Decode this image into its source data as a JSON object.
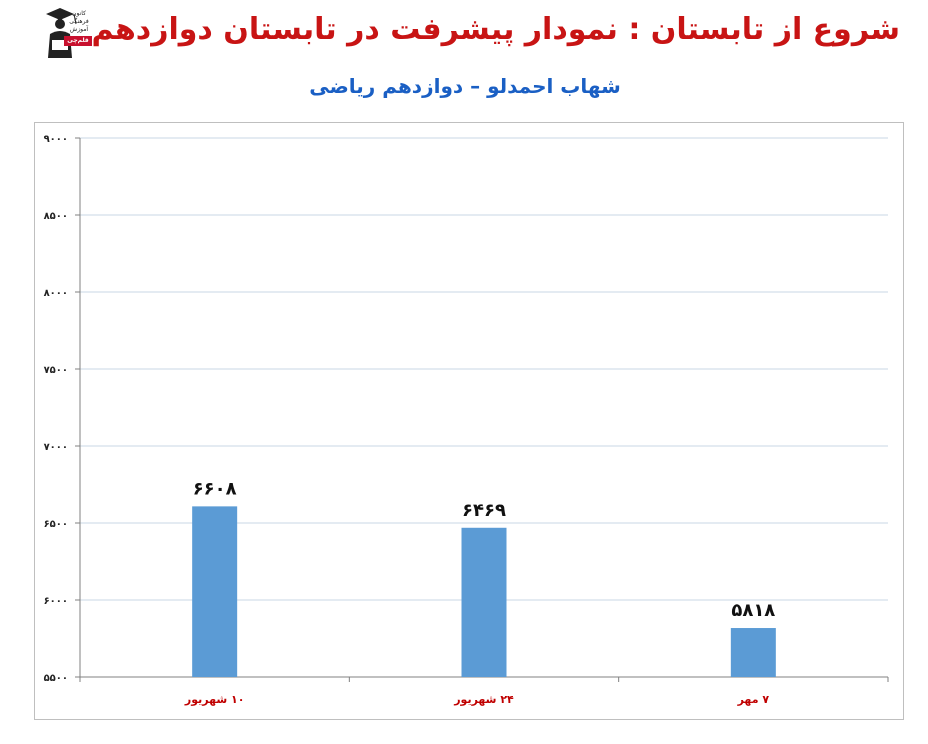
{
  "header": {
    "title": "شروع از تابستان : نمودار پیشرفت در تابستان دوازدهم",
    "subtitle": "شهاب احمدلو – دوازدهم ریاضی"
  },
  "logo": {
    "line1": "کانون",
    "line2": "فرهنگی",
    "line3": "آموزش",
    "badge": "قلم‌چی",
    "badge_color": "#c8102e"
  },
  "colors": {
    "title": "#c81414",
    "subtitle": "#1a5fc4",
    "bar": "#5b9bd5",
    "category_label": "#c00000",
    "gridline": "#c9d7e6",
    "axis": "#808080"
  },
  "chart_data": {
    "type": "bar",
    "categories": [
      "۱۰ شهریور",
      "۲۴ شهریور",
      "۷ مهر"
    ],
    "values": [
      6608,
      6469,
      5818
    ],
    "value_labels": [
      "۶۶۰۸",
      "۶۴۶۹",
      "۵۸۱۸"
    ],
    "y_ticks": [
      5500,
      6000,
      6500,
      7000,
      7500,
      8000,
      8500,
      9000
    ],
    "y_tick_labels": [
      "۵۵۰۰",
      "۶۰۰۰",
      "۶۵۰۰",
      "۷۰۰۰",
      "۷۵۰۰",
      "۸۰۰۰",
      "۸۵۰۰",
      "۹۰۰۰"
    ],
    "ylim": [
      5500,
      9000
    ],
    "grid": true,
    "legend": false,
    "title": "",
    "xlabel": "",
    "ylabel": ""
  }
}
